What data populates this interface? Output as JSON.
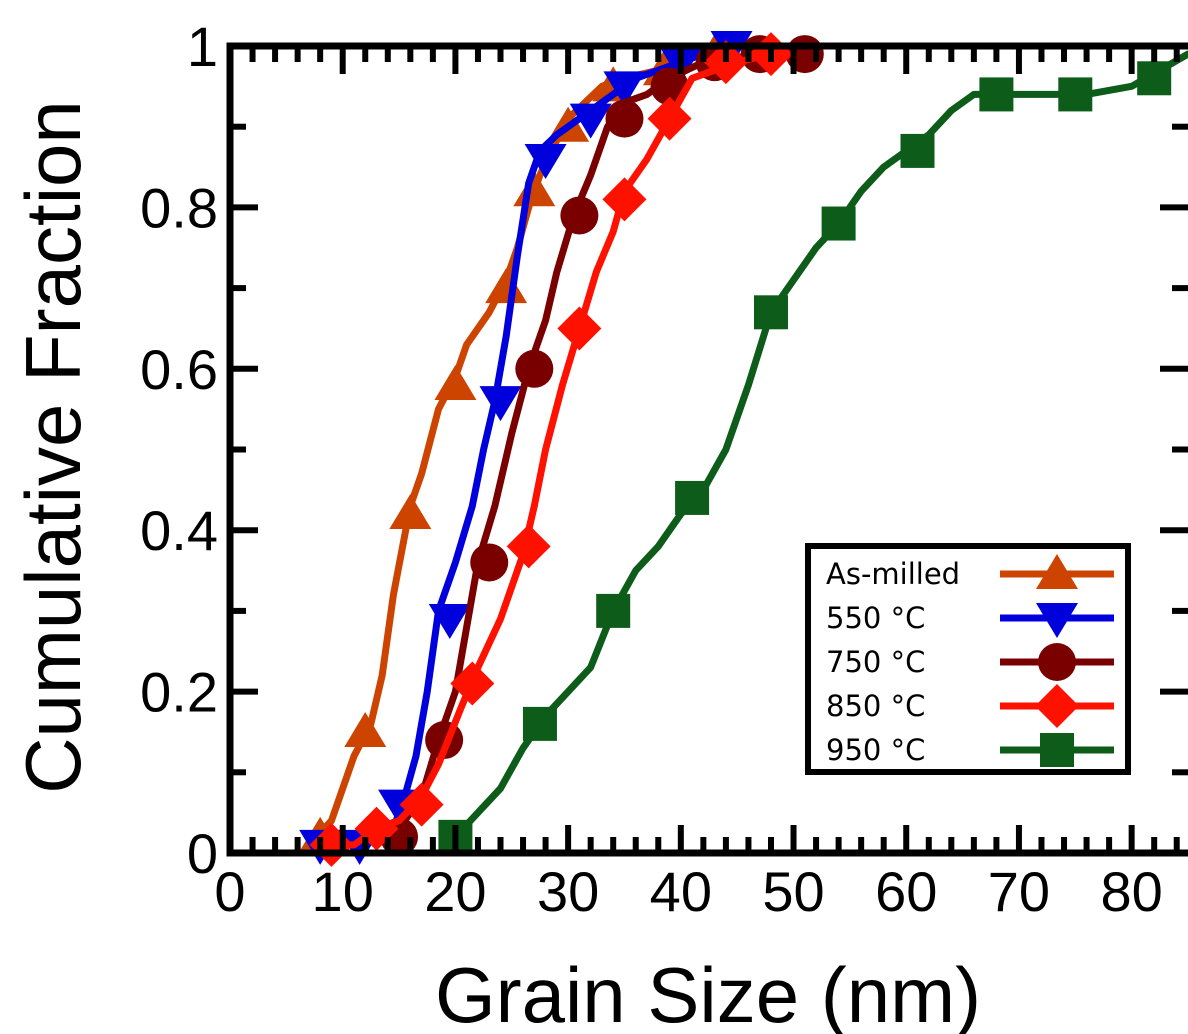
{
  "chart_data": {
    "type": "line",
    "xlabel": "Grain Size (nm)",
    "ylabel": "Cumulative Fraction",
    "xlim": [
      0,
      85
    ],
    "ylim": [
      0,
      1
    ],
    "x_ticks": [
      "0",
      "10",
      "20",
      "30",
      "40",
      "50",
      "60",
      "70",
      "80"
    ],
    "y_ticks": [
      "0",
      "0.2",
      "0.4",
      "0.6",
      "0.8",
      "1"
    ],
    "grid": false,
    "legend_position": "bottom-right",
    "series": [
      {
        "name": "As-milled",
        "color": "#cc4400",
        "marker": "triangle-up",
        "line": [
          [
            7,
            0.01
          ],
          [
            9,
            0.04
          ],
          [
            11,
            0.12
          ],
          [
            12.5,
            0.16
          ],
          [
            13.5,
            0.22
          ],
          [
            14.5,
            0.32
          ],
          [
            16,
            0.43
          ],
          [
            17,
            0.47
          ],
          [
            18.5,
            0.55
          ],
          [
            20,
            0.59
          ],
          [
            21,
            0.63
          ],
          [
            23,
            0.67
          ],
          [
            24.5,
            0.71
          ],
          [
            25.5,
            0.75
          ],
          [
            26.5,
            0.8
          ],
          [
            27.5,
            0.84
          ],
          [
            28.5,
            0.87
          ],
          [
            30,
            0.91
          ],
          [
            31.5,
            0.93
          ],
          [
            33,
            0.95
          ],
          [
            35,
            0.96
          ],
          [
            38,
            0.97
          ],
          [
            40,
            0.98
          ],
          [
            42,
            0.99
          ],
          [
            43,
            1.0
          ]
        ],
        "markers": [
          [
            8,
            0.02
          ],
          [
            12,
            0.15
          ],
          [
            16,
            0.42
          ],
          [
            20,
            0.58
          ],
          [
            24.5,
            0.7
          ],
          [
            27,
            0.82
          ],
          [
            30,
            0.9
          ],
          [
            34,
            0.95
          ],
          [
            38.5,
            0.97
          ],
          [
            43,
            0.99
          ]
        ]
      },
      {
        "name": "550 °C",
        "color": "#0000dd",
        "marker": "triangle-down",
        "line": [
          [
            8,
            0.02
          ],
          [
            12,
            0.02
          ],
          [
            14.5,
            0.03
          ],
          [
            15.5,
            0.07
          ],
          [
            16.5,
            0.12
          ],
          [
            17.5,
            0.2
          ],
          [
            18.5,
            0.3
          ],
          [
            20,
            0.36
          ],
          [
            21.5,
            0.43
          ],
          [
            22.5,
            0.5
          ],
          [
            23.5,
            0.56
          ],
          [
            24.5,
            0.64
          ],
          [
            25.5,
            0.74
          ],
          [
            26.5,
            0.83
          ],
          [
            27.5,
            0.87
          ],
          [
            29,
            0.89
          ],
          [
            31,
            0.91
          ],
          [
            33,
            0.93
          ],
          [
            36,
            0.96
          ],
          [
            40,
            0.98
          ],
          [
            44,
            1.0
          ],
          [
            46,
            1.0
          ]
        ],
        "markers": [
          [
            8,
            0.01
          ],
          [
            11.5,
            0.01
          ],
          [
            15,
            0.06
          ],
          [
            19.5,
            0.29
          ],
          [
            24,
            0.56
          ],
          [
            28,
            0.86
          ],
          [
            32,
            0.91
          ],
          [
            35,
            0.95
          ],
          [
            40,
            0.98
          ],
          [
            44.5,
            1.0
          ]
        ]
      },
      {
        "name": "750 °C",
        "color": "#7a0000",
        "marker": "circle",
        "line": [
          [
            13,
            0.01
          ],
          [
            15,
            0.03
          ],
          [
            17,
            0.07
          ],
          [
            18.5,
            0.14
          ],
          [
            20,
            0.2
          ],
          [
            21,
            0.28
          ],
          [
            22,
            0.36
          ],
          [
            23.5,
            0.43
          ],
          [
            25,
            0.52
          ],
          [
            26.5,
            0.6
          ],
          [
            28,
            0.66
          ],
          [
            29,
            0.72
          ],
          [
            30.5,
            0.79
          ],
          [
            32,
            0.84
          ],
          [
            33.5,
            0.9
          ],
          [
            35,
            0.93
          ],
          [
            37,
            0.94
          ],
          [
            39,
            0.96
          ],
          [
            42,
            0.98
          ],
          [
            47,
            0.99
          ],
          [
            51,
            0.99
          ]
        ],
        "markers": [
          [
            15,
            0.02
          ],
          [
            19,
            0.14
          ],
          [
            23,
            0.36
          ],
          [
            27,
            0.6
          ],
          [
            31,
            0.79
          ],
          [
            35,
            0.91
          ],
          [
            39,
            0.95
          ],
          [
            43,
            0.98
          ],
          [
            47,
            0.99
          ],
          [
            51,
            0.99
          ]
        ]
      },
      {
        "name": "850 °C",
        "color": "#ff1100",
        "marker": "diamond",
        "line": [
          [
            9,
            0.01
          ],
          [
            11,
            0.01
          ],
          [
            13,
            0.03
          ],
          [
            15,
            0.04
          ],
          [
            17,
            0.07
          ],
          [
            18.5,
            0.11
          ],
          [
            20.5,
            0.18
          ],
          [
            22,
            0.23
          ],
          [
            24,
            0.29
          ],
          [
            26,
            0.37
          ],
          [
            27,
            0.43
          ],
          [
            28,
            0.5
          ],
          [
            29.5,
            0.58
          ],
          [
            31,
            0.65
          ],
          [
            32.5,
            0.72
          ],
          [
            34,
            0.77
          ],
          [
            35,
            0.82
          ],
          [
            37,
            0.86
          ],
          [
            39,
            0.91
          ],
          [
            41,
            0.96
          ],
          [
            43,
            0.97
          ],
          [
            45,
            0.98
          ],
          [
            48,
            0.99
          ]
        ],
        "markers": [
          [
            9,
            0.01
          ],
          [
            13,
            0.03
          ],
          [
            17,
            0.06
          ],
          [
            21.5,
            0.21
          ],
          [
            26.5,
            0.38
          ],
          [
            31,
            0.65
          ],
          [
            35,
            0.81
          ],
          [
            39,
            0.91
          ],
          [
            44,
            0.98
          ],
          [
            48,
            0.99
          ]
        ]
      },
      {
        "name": "950 °C",
        "color": "#0d5c1a",
        "marker": "square",
        "line": [
          [
            20,
            0.02
          ],
          [
            22,
            0.05
          ],
          [
            24,
            0.08
          ],
          [
            26,
            0.13
          ],
          [
            28,
            0.17
          ],
          [
            30,
            0.2
          ],
          [
            32,
            0.23
          ],
          [
            34,
            0.3
          ],
          [
            36,
            0.35
          ],
          [
            38,
            0.38
          ],
          [
            40,
            0.42
          ],
          [
            42,
            0.45
          ],
          [
            44,
            0.5
          ],
          [
            46,
            0.58
          ],
          [
            48,
            0.67
          ],
          [
            50,
            0.71
          ],
          [
            52,
            0.75
          ],
          [
            54,
            0.78
          ],
          [
            56,
            0.82
          ],
          [
            58,
            0.85
          ],
          [
            60,
            0.87
          ],
          [
            62,
            0.89
          ],
          [
            64,
            0.92
          ],
          [
            66,
            0.94
          ],
          [
            70,
            0.94
          ],
          [
            76,
            0.94
          ],
          [
            80,
            0.95
          ],
          [
            85,
            0.99
          ]
        ],
        "markers": [
          [
            20,
            0.02
          ],
          [
            27.5,
            0.16
          ],
          [
            34,
            0.3
          ],
          [
            41,
            0.44
          ],
          [
            48,
            0.67
          ],
          [
            54,
            0.78
          ],
          [
            61,
            0.87
          ],
          [
            68,
            0.94
          ],
          [
            75,
            0.94
          ],
          [
            82,
            0.96
          ]
        ]
      }
    ]
  }
}
